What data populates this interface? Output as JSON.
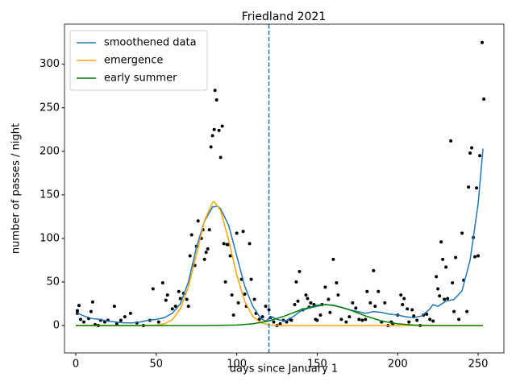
{
  "chart_data": {
    "type": "line",
    "title": "Friedland 2021",
    "xlabel": "days since January 1",
    "ylabel": "number of passes / night",
    "xlim": [
      -7,
      266
    ],
    "ylim": [
      -31.5,
      346
    ],
    "xticks": [
      0,
      50,
      100,
      150,
      200,
      250
    ],
    "yticks": [
      0,
      50,
      100,
      150,
      200,
      250,
      300
    ],
    "legend": "upper left",
    "vline": {
      "x": 120,
      "color": "#1f77b4",
      "style": "dashed"
    },
    "scatter": {
      "color": "#000000",
      "x": [
        1,
        1,
        2,
        3,
        5,
        8,
        9.5,
        10.5,
        12,
        14,
        15.5,
        18,
        20,
        24,
        25.5,
        28,
        30.5,
        34,
        38,
        42,
        46,
        48,
        51.5,
        54,
        56,
        57,
        60,
        62,
        64,
        65,
        67,
        69,
        70,
        71,
        72,
        73,
        74,
        75,
        76,
        78,
        79,
        80,
        81,
        82,
        83,
        84,
        85,
        86,
        86.5,
        87.5,
        89,
        90,
        91,
        92,
        93,
        94,
        95,
        96,
        97,
        98,
        100,
        101,
        103,
        104,
        105,
        106,
        108,
        109,
        111,
        112,
        114,
        116,
        118,
        120,
        121,
        123,
        125,
        127,
        129,
        131,
        133,
        134,
        136,
        137,
        138,
        139,
        141,
        143,
        144,
        145,
        146,
        148,
        149,
        150,
        152,
        153,
        155,
        157,
        158,
        160,
        162,
        163,
        165,
        168,
        170,
        172,
        174,
        176,
        178,
        180,
        181,
        183,
        185,
        186,
        188,
        190,
        192,
        194,
        196,
        197,
        200,
        202,
        203,
        204,
        206,
        207,
        209,
        210,
        212,
        214,
        216,
        218,
        220,
        222,
        224,
        225,
        226,
        227,
        228,
        229,
        230,
        231,
        233,
        234,
        235,
        236,
        238,
        240,
        241,
        243,
        244,
        245,
        246,
        247,
        248,
        249,
        250,
        251,
        252.5,
        253.5
      ],
      "values": [
        17,
        14,
        23,
        7,
        4,
        8,
        16,
        27,
        1,
        0,
        6,
        4,
        6,
        22,
        2,
        6,
        10,
        14,
        3,
        0,
        6,
        42,
        4,
        49,
        29,
        35,
        19,
        22,
        39,
        31,
        37,
        30,
        22,
        80,
        104,
        69,
        69,
        91,
        120,
        100,
        110,
        76,
        84,
        88,
        110,
        205,
        218,
        225,
        270,
        259,
        224,
        193,
        229,
        94,
        50,
        93,
        93,
        80,
        35,
        12,
        106,
        26,
        53,
        108,
        36,
        22,
        94,
        53,
        30,
        14,
        7,
        10,
        22,
        18,
        9,
        4,
        0,
        2,
        6,
        4,
        7,
        6,
        24,
        50,
        28,
        62,
        18,
        35,
        31,
        21,
        26,
        24,
        7,
        6,
        12,
        24,
        44,
        30,
        15,
        76,
        49,
        35,
        7,
        4,
        10,
        26,
        20,
        7,
        6,
        7,
        39,
        26,
        63,
        22,
        39,
        4,
        26,
        0,
        4,
        2,
        12,
        35,
        24,
        31,
        19,
        4,
        18,
        11,
        6,
        0,
        12,
        13,
        7,
        5,
        56,
        42,
        34,
        96,
        76,
        30,
        67,
        31,
        212,
        49,
        16,
        78,
        7,
        106,
        52,
        16,
        159,
        198,
        204,
        101,
        79,
        158,
        80,
        195,
        325,
        260
      ]
    },
    "series": [
      {
        "name": "smoothened data",
        "color": "#1f77b4",
        "x": [
          1,
          5,
          10,
          15,
          20,
          25,
          30,
          35,
          40,
          45,
          50,
          55,
          60,
          65,
          70,
          75,
          80,
          85,
          88,
          90,
          95,
          100,
          105,
          110,
          115,
          118,
          120,
          122,
          125,
          130,
          135,
          140,
          145,
          150,
          155,
          160,
          165,
          170,
          175,
          180,
          185,
          190,
          195,
          200,
          205,
          210,
          215,
          220,
          222,
          225,
          230,
          235,
          240,
          245,
          250,
          253
        ],
        "values": [
          14,
          11,
          8,
          7,
          5,
          4,
          3,
          3,
          4,
          6,
          7,
          9,
          14,
          25,
          50,
          90,
          120,
          136,
          137,
          134,
          115,
          80,
          45,
          22,
          8,
          5,
          8,
          10,
          7,
          5,
          10,
          17,
          20,
          22,
          24,
          23,
          21,
          18,
          16,
          14,
          16,
          15,
          13,
          12,
          10,
          9,
          11,
          19,
          24,
          22,
          28,
          30,
          40,
          75,
          140,
          203
        ]
      },
      {
        "name": "emergence",
        "color": "#ffa500",
        "x": [
          0,
          40,
          50,
          55,
          60,
          65,
          70,
          75,
          80,
          85,
          86,
          90,
          95,
          100,
          105,
          110,
          115,
          120,
          125,
          130,
          253
        ],
        "values": [
          0,
          0,
          0.4,
          1.8,
          6.6,
          19.2,
          44.4,
          82,
          120.6,
          141.4,
          142,
          132,
          98,
          58,
          27.5,
          10.4,
          3.1,
          0.75,
          0.14,
          0,
          0
        ]
      },
      {
        "name": "early summer",
        "color": "#008000",
        "x": [
          0,
          80,
          100,
          110,
          120,
          130,
          140,
          150,
          155,
          160,
          170,
          180,
          190,
          200,
          210,
          220,
          253
        ],
        "values": [
          0,
          0,
          0.55,
          1.9,
          5.2,
          11,
          18.1,
          23.3,
          24,
          23.3,
          18.1,
          11,
          5.2,
          1.9,
          0.55,
          0.1,
          0
        ]
      }
    ]
  }
}
